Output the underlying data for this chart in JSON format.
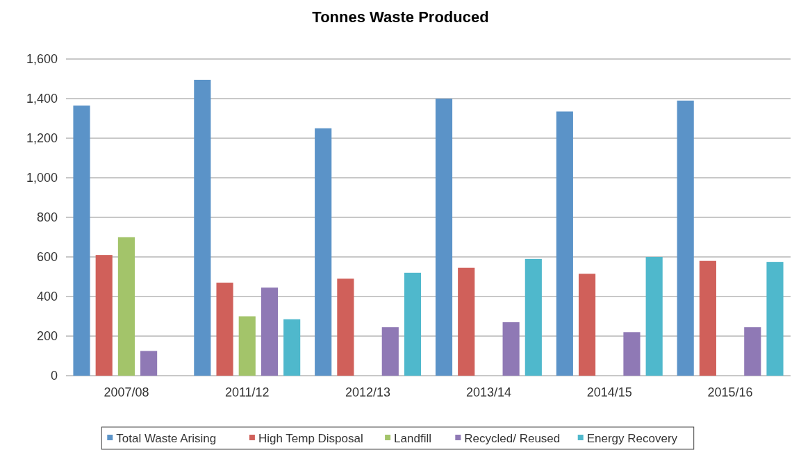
{
  "chart_data": {
    "type": "bar",
    "title": "Tonnes Waste Produced",
    "categories": [
      "2007/08",
      "2011/12",
      "2012/13",
      "2013/14",
      "2014/15",
      "2015/16"
    ],
    "series": [
      {
        "name": "Total Waste Arising",
        "color": "#5b93c8",
        "values": [
          1365,
          1495,
          1250,
          1400,
          1335,
          1390
        ]
      },
      {
        "name": "High Temp Disposal",
        "color": "#d0605a",
        "values": [
          610,
          470,
          490,
          545,
          515,
          580
        ]
      },
      {
        "name": "Landfill",
        "color": "#a3c46a",
        "values": [
          700,
          300,
          null,
          null,
          null,
          null
        ]
      },
      {
        "name": "Recycled/ Reused",
        "color": "#8f79b5",
        "values": [
          125,
          445,
          245,
          270,
          220,
          245
        ]
      },
      {
        "name": "Energy Recovery",
        "color": "#4fb8cc",
        "values": [
          null,
          285,
          520,
          590,
          600,
          575
        ]
      }
    ],
    "ylim": [
      0,
      1600
    ],
    "yticks": [
      {
        "value": 0,
        "label": "0"
      },
      {
        "value": 200,
        "label": "200"
      },
      {
        "value": 400,
        "label": "400"
      },
      {
        "value": 600,
        "label": "600"
      },
      {
        "value": 800,
        "label": "800"
      },
      {
        "value": 1000,
        "label": "1,000"
      },
      {
        "value": 1200,
        "label": "1,200"
      },
      {
        "value": 1400,
        "label": "1,400"
      },
      {
        "value": 1600,
        "label": "1,600"
      }
    ],
    "grid": "y",
    "legend": "bottom"
  }
}
